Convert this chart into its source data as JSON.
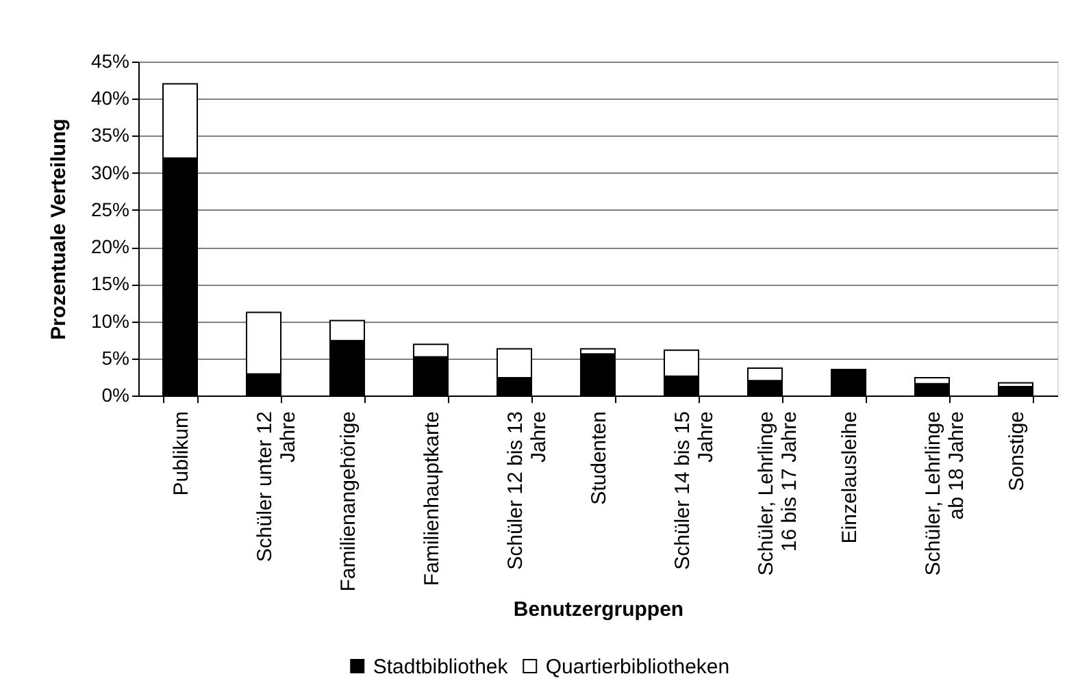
{
  "chart_data": {
    "type": "bar",
    "stacked": true,
    "xlabel": "Benutzergruppen",
    "ylabel": "Prozentuale Verteilung",
    "categories": [
      "Publikum",
      "Schüler unter 12 Jahre",
      "Familienangehörige",
      "Familienhauptkarte",
      "Schüler 12 bis 13 Jahre",
      "Studenten",
      "Schüler 14 bis 15 Jahre",
      "Schüler, Lehrlinge 16 bis 17 Jahre",
      "Einzelausleihe",
      "Schüler, Lehrlinge ab 18 Jahre",
      "Sonstige"
    ],
    "series": [
      {
        "name": "Stadtbibliothek",
        "color": "#000000",
        "values": [
          32,
          2.9,
          7.4,
          5.2,
          2.4,
          5.6,
          2.6,
          2.0,
          3.5,
          1.6,
          1.2
        ]
      },
      {
        "name": "Quartierbibliotheken",
        "color": "#ffffff",
        "values": [
          10,
          8.3,
          2.7,
          1.7,
          3.9,
          0.7,
          3.5,
          1.7,
          null,
          0.8,
          0.5
        ]
      }
    ],
    "ylim": [
      0,
      45
    ],
    "yticks": [
      {
        "value": 0,
        "label": "0%"
      },
      {
        "value": 5,
        "label": "5%"
      },
      {
        "value": 10,
        "label": "10%"
      },
      {
        "value": 15,
        "label": "15%"
      },
      {
        "value": 20,
        "label": "20%"
      },
      {
        "value": 25,
        "label": "25%"
      },
      {
        "value": 30,
        "label": "30%"
      },
      {
        "value": 35,
        "label": "35%"
      },
      {
        "value": 40,
        "label": "40%"
      },
      {
        "value": 45,
        "label": "45%"
      }
    ],
    "grid": "y",
    "legend": "bottom"
  }
}
